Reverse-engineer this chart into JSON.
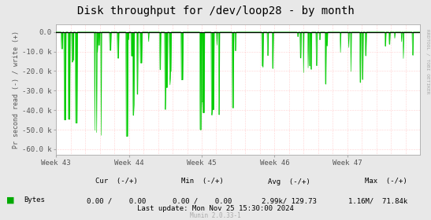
{
  "title": "Disk throughput for /dev/loop28 - by month",
  "ylabel": "Pr second read (-) / write (+)",
  "xlabel_ticks": [
    "Week 43",
    "Week 44",
    "Week 45",
    "Week 46",
    "Week 47"
  ],
  "yticks": [
    0,
    -10000,
    -20000,
    -30000,
    -40000,
    -50000,
    -60000
  ],
  "ytick_labels": [
    "0.0",
    "-10.0 k",
    "-20.0 k",
    "-30.0 k",
    "-40.0 k",
    "-50.0 k",
    "-60.0 k"
  ],
  "ylim": [
    -63000,
    4000
  ],
  "xlim": [
    0,
    1
  ],
  "bg_color": "#e8e8e8",
  "plot_bg_color": "#ffffff",
  "grid_color_minor": "#ffaaaa",
  "line_color": "#00cc00",
  "zero_line_color": "#000000",
  "right_label": "RRDTOOL / TOBI OETIKER",
  "legend_label": "Bytes",
  "legend_color": "#00aa00",
  "cur_label": "Cur  (-/+)",
  "cur_val": "0.00 /    0.00",
  "min_label": "Min  (-/+)",
  "min_val": "0.00 /    0.00",
  "avg_label": "Avg  (-/+)",
  "avg_val": "2.99k/ 129.73",
  "max_label": "Max  (-/+)",
  "max_val": "1.16M/  71.84k",
  "last_update": "Last update: Mon Nov 25 15:30:00 2024",
  "munin_label": "Munin 2.0.33-1",
  "title_fontsize": 10,
  "tick_fontsize": 6.5,
  "legend_fontsize": 6.5,
  "n_points": 800
}
